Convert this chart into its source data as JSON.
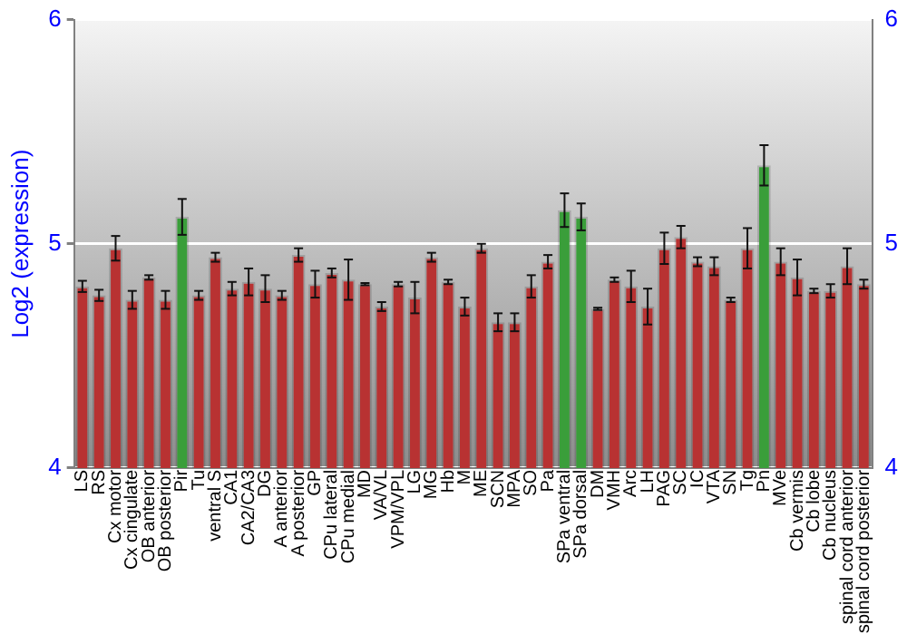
{
  "chart_data": {
    "type": "bar",
    "ylabel": "Log2 (expression)",
    "categories": [
      "LS",
      "RS",
      "Cx motor",
      "Cx cingulate",
      "OB anterior",
      "OB posterior",
      "Pir",
      "Tu",
      "ventral S",
      "CA1",
      "CA2/CA3",
      "DG",
      "A anterior",
      "A posterior",
      "GP",
      "CPu lateral",
      "CPu medial",
      "MD",
      "VA/VL",
      "VPM/VPL",
      "LG",
      "MG",
      "Hb",
      "M",
      "ME",
      "SCN",
      "MPA",
      "SO",
      "Pa",
      "SPa ventral",
      "SPa dorsal",
      "DM",
      "VMH",
      "Arc",
      "LH",
      "PAG",
      "SC",
      "IC",
      "VTA",
      "SN",
      "Tg",
      "Pn",
      "MVe",
      "Cb vermis",
      "Cb lobe",
      "Cb nucleus",
      "spinal cord anterior",
      "spinal cord posterior"
    ],
    "values": [
      4.81,
      4.77,
      4.98,
      4.75,
      4.85,
      4.75,
      5.12,
      4.77,
      4.94,
      4.8,
      4.83,
      4.8,
      4.77,
      4.95,
      4.82,
      4.87,
      4.84,
      4.82,
      4.72,
      4.82,
      4.76,
      4.94,
      4.83,
      4.72,
      4.98,
      4.65,
      4.65,
      4.81,
      4.92,
      5.15,
      5.12,
      4.71,
      4.84,
      4.81,
      4.72,
      4.98,
      5.03,
      4.92,
      4.9,
      4.75,
      4.98,
      5.35,
      4.92,
      4.85,
      4.79,
      4.79,
      4.9,
      4.82
    ],
    "errors": [
      0.025,
      0.025,
      0.055,
      0.04,
      0.01,
      0.04,
      0.08,
      0.02,
      0.02,
      0.03,
      0.06,
      0.06,
      0.02,
      0.03,
      0.06,
      0.02,
      0.09,
      0.005,
      0.02,
      0.01,
      0.07,
      0.02,
      0.01,
      0.04,
      0.02,
      0.04,
      0.04,
      0.05,
      0.03,
      0.075,
      0.06,
      0.005,
      0.01,
      0.07,
      0.08,
      0.07,
      0.05,
      0.02,
      0.04,
      0.01,
      0.09,
      0.09,
      0.06,
      0.08,
      0.01,
      0.03,
      0.08,
      0.02
    ],
    "colors": [
      "#b83232",
      "#b83232",
      "#b83232",
      "#b83232",
      "#b83232",
      "#b83232",
      "#3a9e3a",
      "#b83232",
      "#b83232",
      "#b83232",
      "#b83232",
      "#b83232",
      "#b83232",
      "#b83232",
      "#b83232",
      "#b83232",
      "#b83232",
      "#b83232",
      "#b83232",
      "#b83232",
      "#b83232",
      "#b83232",
      "#b83232",
      "#b83232",
      "#b83232",
      "#b83232",
      "#b83232",
      "#b83232",
      "#b83232",
      "#3a9e3a",
      "#3a9e3a",
      "#b83232",
      "#b83232",
      "#b83232",
      "#b83232",
      "#b83232",
      "#b83232",
      "#b83232",
      "#b83232",
      "#b83232",
      "#b83232",
      "#3a9e3a",
      "#b83232",
      "#b83232",
      "#b83232",
      "#b83232",
      "#b83232",
      "#b83232"
    ],
    "ylim": [
      4,
      6
    ],
    "yticks": [
      4,
      5,
      6
    ],
    "y2lim": [
      4,
      6
    ],
    "y2ticks": [
      4,
      5,
      6
    ],
    "grid": "y",
    "legend": false
  }
}
